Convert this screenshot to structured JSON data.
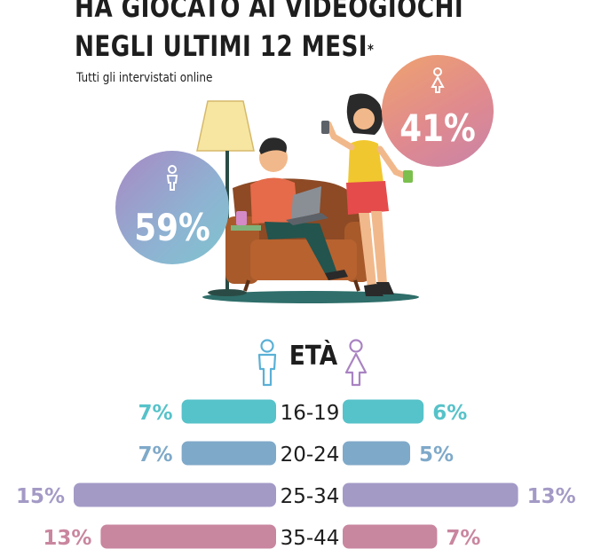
{
  "header": {
    "title_line1": "HA GIOCATO AI VIDEOGIOCHI",
    "title_line2": "NEGLI ULTIMI 12 MESI",
    "title_mark": "*",
    "subtitle": "Tutti gli intervistati online"
  },
  "gender_split": {
    "male_pct": "59%",
    "female_pct": "41%",
    "male_icon": "male-icon",
    "female_icon": "female-icon"
  },
  "age_section": {
    "title": "ETÀ",
    "male_icon": "male-icon",
    "female_icon": "female-icon"
  },
  "colors": {
    "row_16_19": "#56c2c9",
    "row_20_24": "#7fa9c9",
    "row_25_34": "#a49ac6",
    "row_35_44": "#c9869f",
    "male_icon": "#5ab0d6",
    "female_icon": "#a983c2"
  },
  "chart_data": {
    "type": "bar",
    "orientation": "horizontal-butterfly",
    "categories": [
      "16-19",
      "20-24",
      "25-34",
      "35-44"
    ],
    "series": [
      {
        "values": [
          7,
          7,
          15,
          13
        ]
      },
      {
        "values": [
          6,
          5,
          13,
          7
        ]
      }
    ],
    "value_labels_left": [
      "7%",
      "7%",
      "15%",
      "13%"
    ],
    "value_labels_right": [
      "6%",
      "5%",
      "13%",
      "7%"
    ],
    "unit": "%"
  }
}
